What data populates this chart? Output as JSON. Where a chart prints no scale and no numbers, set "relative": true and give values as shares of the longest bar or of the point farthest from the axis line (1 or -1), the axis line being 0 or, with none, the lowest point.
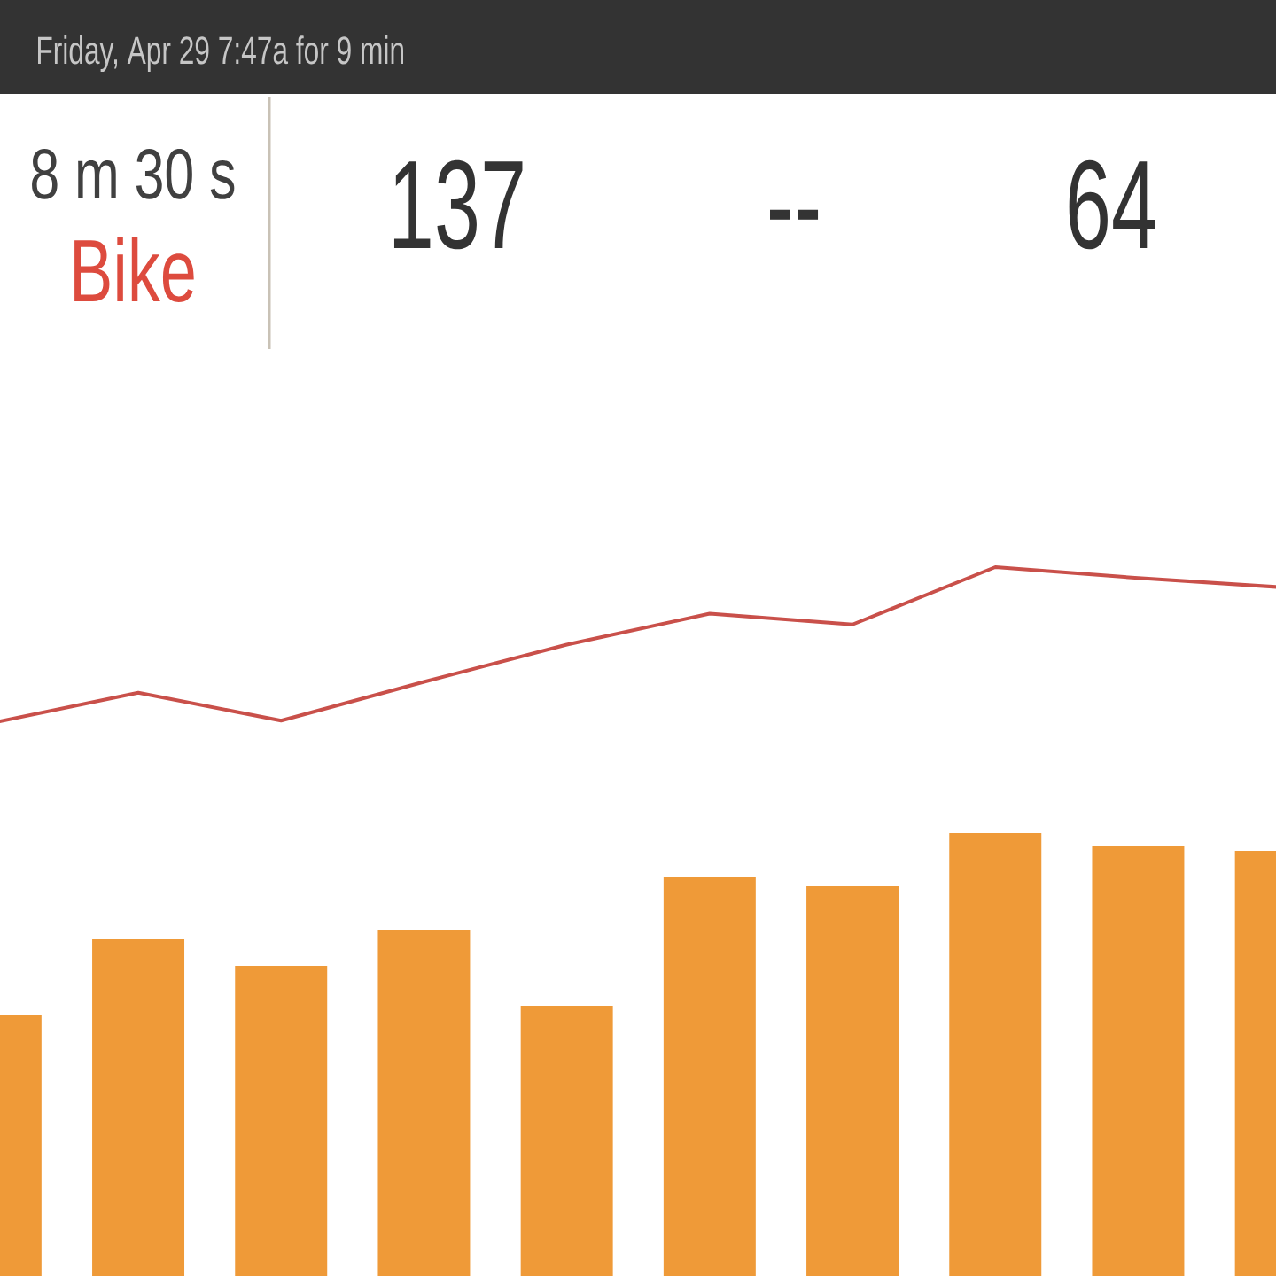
{
  "chart_data": [
    {
      "type": "other",
      "title": "Friday, Apr 29 7:47a for 9 min",
      "annotations": [
        "8 m 30 s",
        "Bike",
        "137",
        "--",
        "64"
      ]
    },
    {
      "type": "line",
      "relative": true,
      "categories": [
        null,
        null,
        null,
        null,
        null,
        null,
        null,
        null,
        null,
        null
      ],
      "color": "#c9504a",
      "values": [
        0,
        0.19,
        0.01,
        0.26,
        0.5,
        0.7,
        0.63,
        1.0,
        0.93,
        0.87
      ]
    },
    {
      "type": "bar",
      "relative": true,
      "categories": [
        null,
        null,
        null,
        null,
        null,
        null,
        null,
        null,
        null,
        null
      ],
      "color": "#ef9a38",
      "values": [
        0.59,
        0.76,
        0.7,
        0.78,
        0.61,
        0.9,
        0.88,
        1.0,
        0.97,
        0.96
      ]
    }
  ]
}
